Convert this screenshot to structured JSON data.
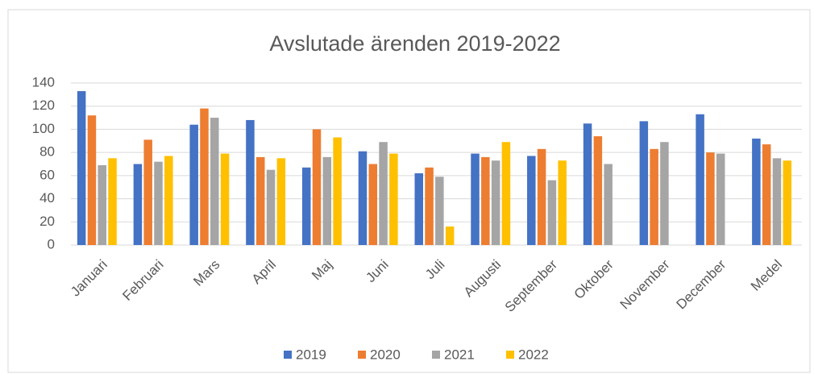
{
  "chart_data": {
    "type": "bar",
    "title": "Avslutade ärenden 2019-2022",
    "categories": [
      "Januari",
      "Februari",
      "Mars",
      "April",
      "Maj",
      "Juni",
      "Juli",
      "Augusti",
      "September",
      "Oktober",
      "November",
      "December",
      "Medel"
    ],
    "series": [
      {
        "name": "2019",
        "color": "#4472c4",
        "values": [
          133,
          70,
          104,
          108,
          67,
          81,
          62,
          79,
          77,
          105,
          107,
          113,
          92
        ]
      },
      {
        "name": "2020",
        "color": "#ed7d31",
        "values": [
          112,
          91,
          118,
          76,
          100,
          70,
          67,
          76,
          83,
          94,
          83,
          80,
          87
        ]
      },
      {
        "name": "2021",
        "color": "#a5a5a5",
        "values": [
          69,
          72,
          110,
          65,
          76,
          89,
          59,
          73,
          56,
          70,
          89,
          79,
          75
        ]
      },
      {
        "name": "2022",
        "color": "#ffc000",
        "values": [
          75,
          77,
          79,
          75,
          93,
          79,
          16,
          89,
          73,
          null,
          null,
          null,
          73
        ]
      }
    ],
    "ylim": [
      0,
      140
    ],
    "yticks": [
      0,
      20,
      40,
      60,
      80,
      100,
      120,
      140
    ],
    "grid": true,
    "legend": "bottom"
  }
}
